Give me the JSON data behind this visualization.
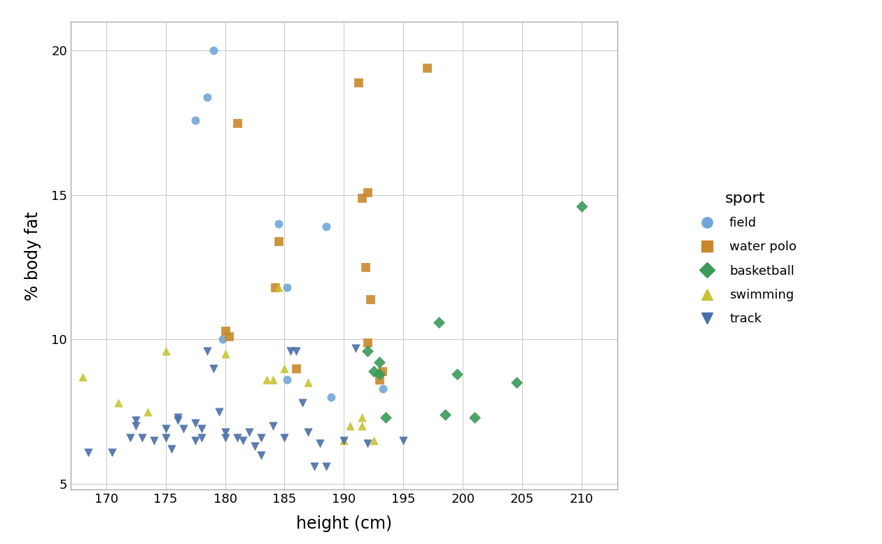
{
  "title": "",
  "xlabel": "height (cm)",
  "ylabel": "% body fat",
  "xlim": [
    167,
    213
  ],
  "ylim": [
    4.8,
    21.0
  ],
  "xticks": [
    170,
    175,
    180,
    185,
    190,
    195,
    200,
    205,
    210
  ],
  "yticks": [
    5,
    10,
    15,
    20
  ],
  "background_color": "#ffffff",
  "panel_background": "#ffffff",
  "grid_color": "#cccccc",
  "legend_title": "sport",
  "sports": {
    "field": {
      "color": "#6fa8d6",
      "marker": "o",
      "data": [
        [
          179.0,
          20.0
        ],
        [
          178.5,
          18.4
        ],
        [
          177.5,
          17.6
        ],
        [
          184.5,
          14.0
        ],
        [
          188.5,
          13.9
        ],
        [
          179.8,
          10.0
        ],
        [
          185.2,
          11.8
        ],
        [
          188.9,
          8.0
        ],
        [
          193.3,
          8.3
        ],
        [
          185.2,
          8.6
        ]
      ]
    },
    "water polo": {
      "color": "#c8882a",
      "marker": "s",
      "data": [
        [
          181.0,
          17.5
        ],
        [
          184.5,
          13.4
        ],
        [
          184.2,
          11.8
        ],
        [
          191.2,
          18.9
        ],
        [
          192.0,
          15.1
        ],
        [
          191.5,
          14.9
        ],
        [
          191.8,
          12.5
        ],
        [
          192.2,
          11.4
        ],
        [
          186.0,
          9.0
        ],
        [
          180.0,
          10.3
        ],
        [
          180.3,
          10.1
        ],
        [
          192.0,
          9.9
        ],
        [
          193.2,
          8.9
        ],
        [
          193.0,
          8.6
        ],
        [
          197.0,
          19.4
        ]
      ]
    },
    "basketball": {
      "color": "#3a9a58",
      "marker": "D",
      "data": [
        [
          198.0,
          10.6
        ],
        [
          192.0,
          9.6
        ],
        [
          193.0,
          9.2
        ],
        [
          192.5,
          8.9
        ],
        [
          193.0,
          8.8
        ],
        [
          198.5,
          7.4
        ],
        [
          193.5,
          7.3
        ],
        [
          204.5,
          8.5
        ],
        [
          199.5,
          8.8
        ],
        [
          210.0,
          14.6
        ],
        [
          201.0,
          7.3
        ]
      ]
    },
    "swimming": {
      "color": "#c8c435",
      "marker": "^",
      "data": [
        [
          168.0,
          8.7
        ],
        [
          171.0,
          7.8
        ],
        [
          173.5,
          7.5
        ],
        [
          175.0,
          9.6
        ],
        [
          180.0,
          9.5
        ],
        [
          183.5,
          8.6
        ],
        [
          184.0,
          8.6
        ],
        [
          184.5,
          11.8
        ],
        [
          185.0,
          9.0
        ],
        [
          187.0,
          8.5
        ],
        [
          191.5,
          7.3
        ],
        [
          191.5,
          7.0
        ],
        [
          192.5,
          6.5
        ],
        [
          190.5,
          7.0
        ],
        [
          190.0,
          6.5
        ]
      ]
    },
    "track": {
      "color": "#4a6faa",
      "marker": "v",
      "data": [
        [
          168.5,
          6.1
        ],
        [
          170.5,
          6.1
        ],
        [
          172.0,
          6.6
        ],
        [
          172.5,
          7.2
        ],
        [
          172.5,
          7.0
        ],
        [
          173.0,
          6.6
        ],
        [
          174.0,
          6.5
        ],
        [
          175.0,
          6.9
        ],
        [
          175.0,
          6.6
        ],
        [
          175.5,
          6.2
        ],
        [
          176.0,
          7.3
        ],
        [
          176.0,
          7.2
        ],
        [
          176.5,
          6.9
        ],
        [
          177.5,
          7.1
        ],
        [
          177.5,
          6.5
        ],
        [
          178.0,
          6.9
        ],
        [
          178.0,
          6.6
        ],
        [
          178.5,
          9.6
        ],
        [
          179.0,
          9.0
        ],
        [
          179.5,
          7.5
        ],
        [
          180.0,
          6.8
        ],
        [
          180.0,
          6.6
        ],
        [
          181.0,
          6.6
        ],
        [
          181.5,
          6.5
        ],
        [
          182.0,
          6.8
        ],
        [
          182.5,
          6.3
        ],
        [
          183.0,
          6.6
        ],
        [
          183.0,
          6.0
        ],
        [
          184.0,
          7.0
        ],
        [
          185.0,
          6.6
        ],
        [
          185.5,
          9.6
        ],
        [
          186.0,
          9.6
        ],
        [
          186.5,
          7.8
        ],
        [
          187.0,
          6.8
        ],
        [
          187.5,
          5.6
        ],
        [
          188.0,
          6.4
        ],
        [
          188.5,
          5.6
        ],
        [
          190.0,
          6.5
        ],
        [
          191.0,
          9.7
        ],
        [
          192.0,
          6.4
        ],
        [
          195.0,
          6.5
        ]
      ]
    }
  },
  "legend_fontsize": 13,
  "axis_label_fontsize": 17,
  "tick_fontsize": 13,
  "marker_size": 65,
  "marker_linewidth": 0.5
}
